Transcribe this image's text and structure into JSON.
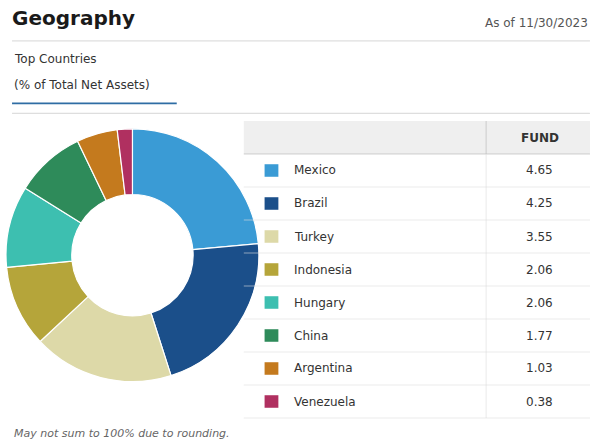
{
  "chart_data": {
    "type": "pie",
    "title": "Geography",
    "subtitle": [
      "Top Countries",
      "(% of Total Net Assets)"
    ],
    "date_label": "As of 11/30/2023",
    "table_header": "FUND",
    "footnote": "May not sum to 100% due to rounding.",
    "categories": [
      "Mexico",
      "Brazil",
      "Turkey",
      "Indonesia",
      "Hungary",
      "China",
      "Argentina",
      "Venezuela"
    ],
    "values": [
      4.65,
      4.25,
      3.55,
      2.06,
      2.06,
      1.77,
      1.03,
      0.38
    ],
    "colors": [
      "#3A9BD5",
      "#1B4F8A",
      "#DDD9A8",
      "#B5A53A",
      "#3DBFB0",
      "#2E8B5A",
      "#C47A1E",
      "#B03060"
    ]
  }
}
